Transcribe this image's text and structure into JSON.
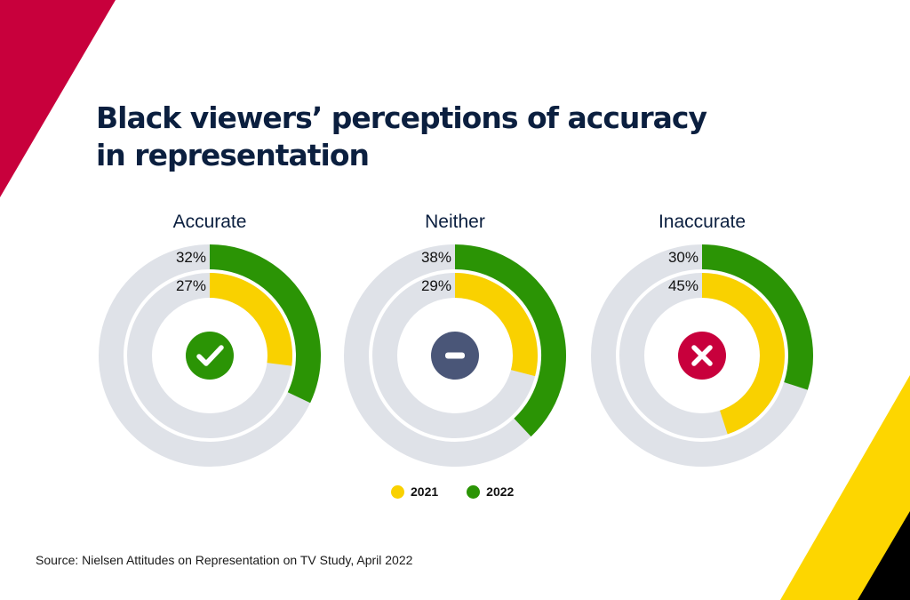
{
  "title_lines": [
    "Black viewers’ perceptions of accuracy",
    "in representation"
  ],
  "source": "Source: Nielsen Attitudes on Representation on TV Study, April 2022",
  "colors": {
    "series_2021": "#f9d100",
    "series_2022": "#2b9405",
    "track": "#dfe2e8",
    "accent_red": "#c8003c",
    "accent_yellow": "#fdd600",
    "accent_black": "#000000",
    "title": "#0b1f3f"
  },
  "chart_data": {
    "type": "donut",
    "legend": [
      "2021",
      "2022"
    ],
    "legend_placement": "bottom-center",
    "charts": [
      {
        "category": "Accurate",
        "icon": "check-icon",
        "icon_color": "#2b9405",
        "series": [
          {
            "name": "2021",
            "value": 27,
            "label": "27%"
          },
          {
            "name": "2022",
            "value": 32,
            "label": "32%"
          }
        ]
      },
      {
        "category": "Neither",
        "icon": "minus-icon",
        "icon_color": "#4a5678",
        "series": [
          {
            "name": "2021",
            "value": 29,
            "label": "29%"
          },
          {
            "name": "2022",
            "value": 38,
            "label": "38%"
          }
        ]
      },
      {
        "category": "Inaccurate",
        "icon": "x-icon",
        "icon_color": "#c8003c",
        "series": [
          {
            "name": "2021",
            "value": 45,
            "label": "45%"
          },
          {
            "name": "2022",
            "value": 30,
            "label": "30%"
          }
        ]
      }
    ]
  }
}
